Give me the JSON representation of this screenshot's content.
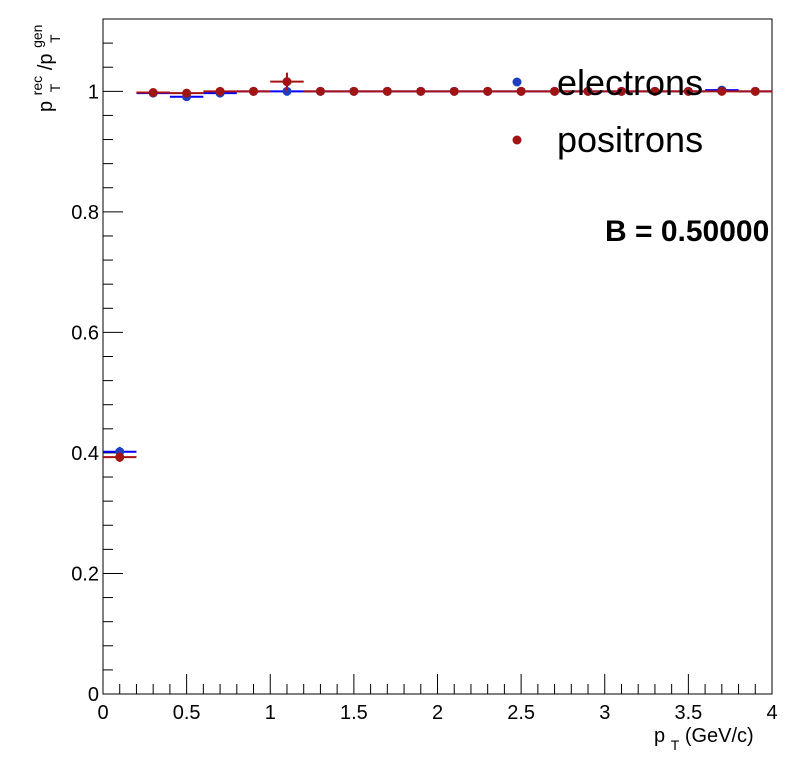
{
  "chart_data": {
    "type": "scatter",
    "x_label": {
      "main": "p",
      "sub": "T",
      "rest": " (GeV/c)"
    },
    "y_label": {
      "p1": "p",
      "sup1": "rec",
      "sub1": "T",
      "slash": "/p",
      "sup2": "gen",
      "sub2": "T"
    },
    "xlim": [
      0,
      4
    ],
    "ylim": [
      0,
      1.12
    ],
    "x_ticks": [
      "0",
      "0.5",
      "1",
      "1.5",
      "2",
      "2.5",
      "3",
      "3.5",
      "4"
    ],
    "y_ticks": [
      "0",
      "0.2",
      "0.4",
      "0.6",
      "0.8",
      "1"
    ],
    "grid": false,
    "legend_position": "top-right",
    "series": [
      {
        "name": "electrons",
        "color": "#0000ff",
        "marker_color": "#1f3fbf",
        "points": [
          {
            "x": 0.1,
            "y": 0.402,
            "xerr": 0.1,
            "yerr": 0.008
          },
          {
            "x": 0.3,
            "y": 0.997,
            "xerr": 0.1,
            "yerr": 0.002
          },
          {
            "x": 0.5,
            "y": 0.991,
            "xerr": 0.1,
            "yerr": 0.003
          },
          {
            "x": 0.7,
            "y": 0.997,
            "xerr": 0.1,
            "yerr": 0.002
          },
          {
            "x": 0.9,
            "y": 1.0,
            "xerr": 0.1,
            "yerr": 0.001
          },
          {
            "x": 1.1,
            "y": 1.0,
            "xerr": 0.1,
            "yerr": 0.001
          },
          {
            "x": 1.3,
            "y": 1.0,
            "xerr": 0.1,
            "yerr": 0.001
          },
          {
            "x": 1.5,
            "y": 1.0,
            "xerr": 0.1,
            "yerr": 0.001
          },
          {
            "x": 1.7,
            "y": 1.0,
            "xerr": 0.1,
            "yerr": 0.001
          },
          {
            "x": 1.9,
            "y": 1.0,
            "xerr": 0.1,
            "yerr": 0.001
          },
          {
            "x": 2.1,
            "y": 1.0,
            "xerr": 0.1,
            "yerr": 0.001
          },
          {
            "x": 2.3,
            "y": 1.0,
            "xerr": 0.1,
            "yerr": 0.001
          },
          {
            "x": 2.5,
            "y": 1.0,
            "xerr": 0.1,
            "yerr": 0.001
          },
          {
            "x": 2.7,
            "y": 1.0,
            "xerr": 0.1,
            "yerr": 0.001
          },
          {
            "x": 2.9,
            "y": 1.0,
            "xerr": 0.1,
            "yerr": 0.001
          },
          {
            "x": 3.1,
            "y": 1.0,
            "xerr": 0.1,
            "yerr": 0.001
          },
          {
            "x": 3.3,
            "y": 1.0,
            "xerr": 0.1,
            "yerr": 0.001
          },
          {
            "x": 3.5,
            "y": 1.0,
            "xerr": 0.1,
            "yerr": 0.001
          },
          {
            "x": 3.7,
            "y": 1.002,
            "xerr": 0.1,
            "yerr": 0.001
          },
          {
            "x": 3.9,
            "y": 1.0,
            "xerr": 0.1,
            "yerr": 0.001
          }
        ]
      },
      {
        "name": "positrons",
        "color": "#aa1111",
        "marker_color": "#a01414",
        "points": [
          {
            "x": 0.1,
            "y": 0.393,
            "xerr": 0.1,
            "yerr": 0.008
          },
          {
            "x": 0.3,
            "y": 0.998,
            "xerr": 0.1,
            "yerr": 0.002
          },
          {
            "x": 0.5,
            "y": 0.997,
            "xerr": 0.1,
            "yerr": 0.003
          },
          {
            "x": 0.7,
            "y": 1.0,
            "xerr": 0.1,
            "yerr": 0.002
          },
          {
            "x": 0.9,
            "y": 1.0,
            "xerr": 0.1,
            "yerr": 0.001
          },
          {
            "x": 1.1,
            "y": 1.016,
            "xerr": 0.1,
            "yerr": 0.015
          },
          {
            "x": 1.3,
            "y": 1.0,
            "xerr": 0.1,
            "yerr": 0.001
          },
          {
            "x": 1.5,
            "y": 1.0,
            "xerr": 0.1,
            "yerr": 0.001
          },
          {
            "x": 1.7,
            "y": 1.0,
            "xerr": 0.1,
            "yerr": 0.001
          },
          {
            "x": 1.9,
            "y": 1.0,
            "xerr": 0.1,
            "yerr": 0.001
          },
          {
            "x": 2.1,
            "y": 1.0,
            "xerr": 0.1,
            "yerr": 0.001
          },
          {
            "x": 2.3,
            "y": 1.0,
            "xerr": 0.1,
            "yerr": 0.001
          },
          {
            "x": 2.5,
            "y": 1.0,
            "xerr": 0.1,
            "yerr": 0.001
          },
          {
            "x": 2.7,
            "y": 1.0,
            "xerr": 0.1,
            "yerr": 0.001
          },
          {
            "x": 2.9,
            "y": 1.0,
            "xerr": 0.1,
            "yerr": 0.001
          },
          {
            "x": 3.1,
            "y": 1.0,
            "xerr": 0.1,
            "yerr": 0.001
          },
          {
            "x": 3.3,
            "y": 1.0,
            "xerr": 0.1,
            "yerr": 0.001
          },
          {
            "x": 3.5,
            "y": 1.0,
            "xerr": 0.1,
            "yerr": 0.001
          },
          {
            "x": 3.7,
            "y": 1.0,
            "xerr": 0.1,
            "yerr": 0.001
          },
          {
            "x": 3.9,
            "y": 1.0,
            "xerr": 0.1,
            "yerr": 0.001
          }
        ]
      }
    ],
    "annotation": "B = 0.50000"
  }
}
